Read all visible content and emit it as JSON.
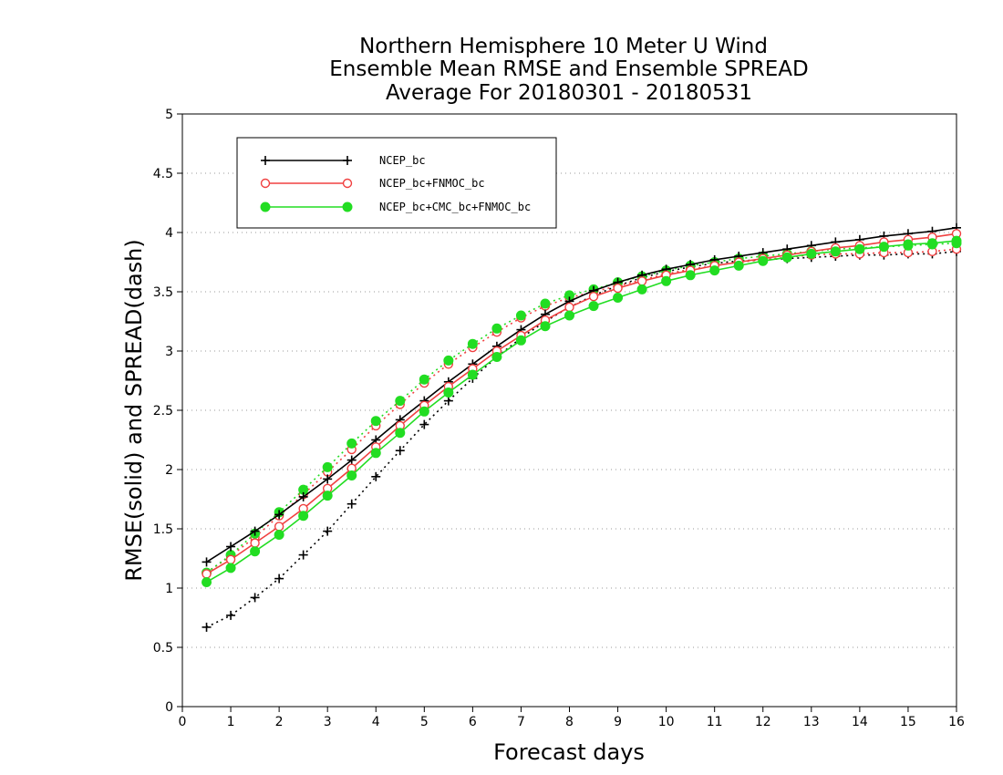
{
  "chart_data": {
    "type": "line",
    "title_lines": [
      "Northern Hemisphere 10 Meter U Wind",
      "Ensemble Mean RMSE and Ensemble SPREAD",
      "Average For 20180301 - 20180531"
    ],
    "xlabel": "Forecast days",
    "ylabel": "RMSE(solid) and SPREAD(dash)",
    "xlim": [
      0,
      16
    ],
    "ylim": [
      0,
      5
    ],
    "x_ticks": [
      "0",
      "1",
      "2",
      "3",
      "4",
      "5",
      "6",
      "7",
      "8",
      "9",
      "10",
      "11",
      "12",
      "13",
      "14",
      "15",
      "16"
    ],
    "y_ticks": [
      "0",
      "0.5",
      "1",
      "1.5",
      "2",
      "2.5",
      "3",
      "3.5",
      "4",
      "4.5",
      "5"
    ],
    "grid": "horizontal dotted",
    "legend_position": "top-left",
    "x": [
      0.5,
      1,
      1.5,
      2,
      2.5,
      3,
      3.5,
      4,
      4.5,
      5,
      5.5,
      6,
      6.5,
      7,
      7.5,
      8,
      8.5,
      9,
      9.5,
      10,
      10.5,
      11,
      11.5,
      12,
      12.5,
      13,
      13.5,
      14,
      14.5,
      15,
      15.5,
      16
    ],
    "series": [
      {
        "name": "NCEP_bc",
        "color": "#000000",
        "marker": "plus",
        "rmse": [
          1.22,
          1.35,
          1.48,
          1.62,
          1.77,
          1.92,
          2.08,
          2.25,
          2.42,
          2.58,
          2.74,
          2.89,
          3.04,
          3.18,
          3.31,
          3.42,
          3.51,
          3.58,
          3.64,
          3.69,
          3.73,
          3.77,
          3.8,
          3.83,
          3.86,
          3.89,
          3.92,
          3.94,
          3.97,
          3.99,
          4.01,
          4.04
        ],
        "spread": [
          0.67,
          0.77,
          0.92,
          1.08,
          1.28,
          1.48,
          1.71,
          1.94,
          2.16,
          2.38,
          2.58,
          2.77,
          2.95,
          3.11,
          3.25,
          3.37,
          3.47,
          3.55,
          3.62,
          3.67,
          3.71,
          3.74,
          3.76,
          3.77,
          3.78,
          3.79,
          3.8,
          3.81,
          3.81,
          3.82,
          3.82,
          3.84
        ]
      },
      {
        "name": "NCEP_bc+FNMOC_bc",
        "color": "#f04040",
        "marker": "open-circle",
        "rmse": [
          1.12,
          1.24,
          1.38,
          1.52,
          1.67,
          1.84,
          2.01,
          2.19,
          2.37,
          2.54,
          2.7,
          2.85,
          3.0,
          3.13,
          3.26,
          3.37,
          3.46,
          3.53,
          3.59,
          3.64,
          3.68,
          3.72,
          3.75,
          3.78,
          3.81,
          3.84,
          3.87,
          3.89,
          3.92,
          3.94,
          3.96,
          3.99
        ],
        "spread": [
          1.13,
          1.27,
          1.43,
          1.61,
          1.79,
          1.98,
          2.17,
          2.37,
          2.55,
          2.73,
          2.89,
          3.03,
          3.16,
          3.28,
          3.38,
          3.45,
          3.5,
          3.55,
          3.6,
          3.65,
          3.69,
          3.72,
          3.75,
          3.77,
          3.79,
          3.81,
          3.82,
          3.82,
          3.83,
          3.83,
          3.84,
          3.86
        ]
      },
      {
        "name": "NCEP_bc+CMC_bc+FNMOC_bc",
        "color": "#22dd22",
        "marker": "filled-circle",
        "rmse": [
          1.05,
          1.17,
          1.31,
          1.45,
          1.61,
          1.78,
          1.95,
          2.14,
          2.31,
          2.49,
          2.65,
          2.8,
          2.95,
          3.09,
          3.21,
          3.3,
          3.38,
          3.45,
          3.52,
          3.59,
          3.64,
          3.68,
          3.72,
          3.76,
          3.79,
          3.82,
          3.84,
          3.86,
          3.88,
          3.9,
          3.91,
          3.93
        ],
        "spread": [
          1.13,
          1.28,
          1.46,
          1.64,
          1.83,
          2.02,
          2.22,
          2.41,
          2.58,
          2.76,
          2.92,
          3.06,
          3.19,
          3.3,
          3.4,
          3.47,
          3.52,
          3.58,
          3.63,
          3.68,
          3.72,
          3.75,
          3.78,
          3.8,
          3.82,
          3.84,
          3.86,
          3.87,
          3.88,
          3.89,
          3.9,
          3.91
        ]
      }
    ]
  }
}
